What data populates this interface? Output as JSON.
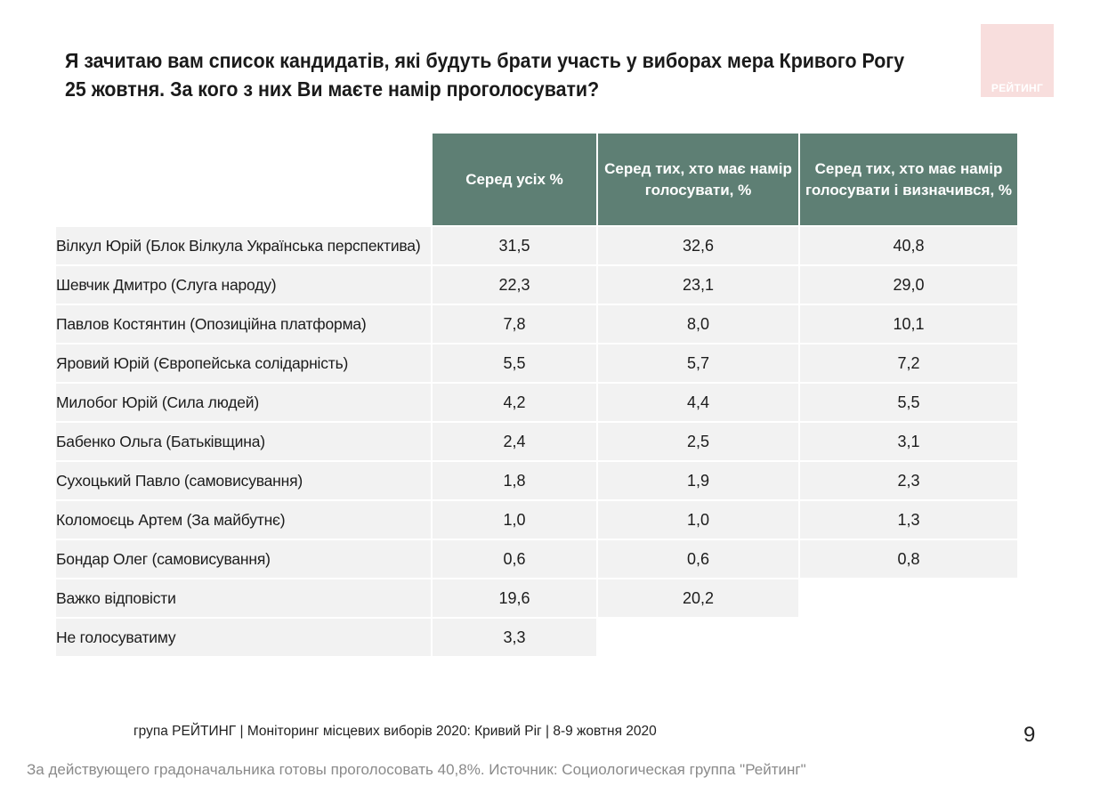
{
  "title": "Я зачитаю вам список кандидатів, які будуть брати участь у виборах мера Кривого Рогу 25 жовтня. За кого з них Ви маєте намір проголосувати?",
  "logo_text": "РЕЙТИНГ",
  "colors": {
    "header_bg": "#5e7f74",
    "cell_bg": "#f2f2f2",
    "logo_bg": "#f8dedd"
  },
  "chart_data": {
    "type": "table",
    "columns": [
      "Серед усіх %",
      "Серед тих, хто має намір голосувати, %",
      "Серед тих, хто має намір голосувати і визначився, %"
    ],
    "rows": [
      {
        "label": "Вілкул Юрій (Блок Вілкула Українська перспектива)",
        "values": [
          "31,5",
          "32,6",
          "40,8"
        ]
      },
      {
        "label": "Шевчик Дмитро (Слуга народу)",
        "values": [
          "22,3",
          "23,1",
          "29,0"
        ]
      },
      {
        "label": "Павлов Костянтин (Опозиційна платформа)",
        "values": [
          "7,8",
          "8,0",
          "10,1"
        ]
      },
      {
        "label": "Яровий Юрій (Європейська солідарність)",
        "values": [
          "5,5",
          "5,7",
          "7,2"
        ]
      },
      {
        "label": "Милобог Юрій (Сила людей)",
        "values": [
          "4,2",
          "4,4",
          "5,5"
        ]
      },
      {
        "label": "Бабенко Ольга (Батьківщина)",
        "values": [
          "2,4",
          "2,5",
          "3,1"
        ]
      },
      {
        "label": "Сухоцький Павло (самовисування)",
        "values": [
          "1,8",
          "1,9",
          "2,3"
        ]
      },
      {
        "label": "Коломоєць Артем (За майбутнє)",
        "values": [
          "1,0",
          "1,0",
          "1,3"
        ]
      },
      {
        "label": "Бондар Олег (самовисування)",
        "values": [
          "0,6",
          "0,6",
          "0,8"
        ]
      },
      {
        "label": "Важко відповісти",
        "values": [
          "19,6",
          "20,2",
          null
        ]
      },
      {
        "label": "Не голосуватиму",
        "values": [
          "3,3",
          null,
          null
        ]
      }
    ]
  },
  "footer": "група РЕЙТИНГ  | Моніторинг місцевих виборів 2020: Кривий Ріг |  8-9 жовтня 2020",
  "page_number": "9",
  "caption": "За действующего градоначальника готовы проголосовать 40,8%. Источник: Социологическая группа \"Рейтинг\""
}
